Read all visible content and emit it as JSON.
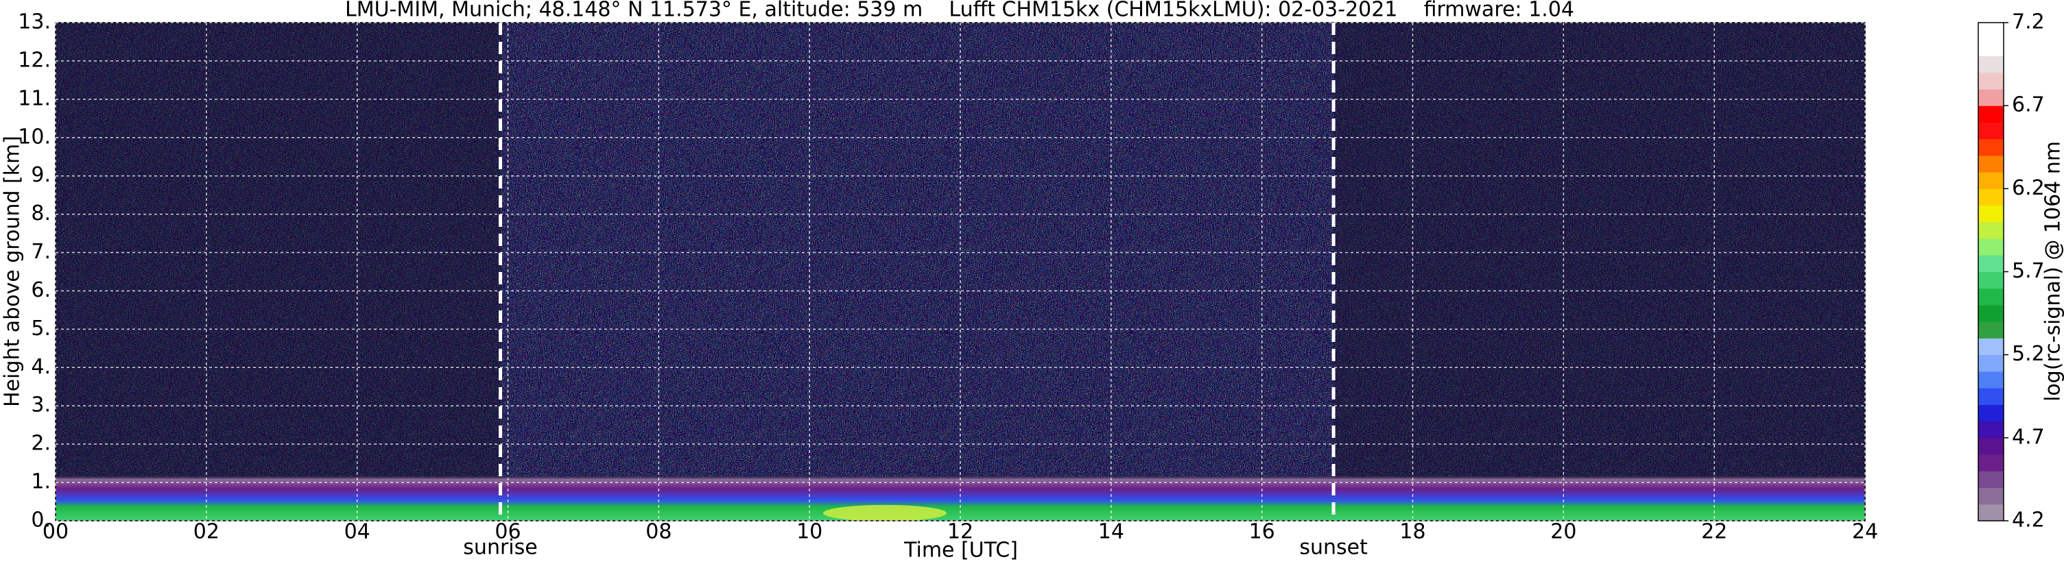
{
  "chart_data": {
    "type": "heatmap",
    "title": "LMU-MIM, Munich; 48.148° N 11.573° E, altitude: 539 m    Lufft CHM15kx (CHM15kxLMU): 02-03-2021    firmware: 1.04",
    "xlabel": "Time [UTC]",
    "ylabel": "Height above ground [km]",
    "colorbar_label": "log(rc-signal) @ 1064 nm",
    "xlim": [
      0,
      24
    ],
    "xticks": [
      {
        "value": 0,
        "label": "00"
      },
      {
        "value": 2,
        "label": "02"
      },
      {
        "value": 4,
        "label": "04"
      },
      {
        "value": 6,
        "label": "06"
      },
      {
        "value": 8,
        "label": "08"
      },
      {
        "value": 10,
        "label": "10"
      },
      {
        "value": 12,
        "label": "12"
      },
      {
        "value": 14,
        "label": "14"
      },
      {
        "value": 16,
        "label": "16"
      },
      {
        "value": 18,
        "label": "18"
      },
      {
        "value": 20,
        "label": "20"
      },
      {
        "value": 22,
        "label": "22"
      },
      {
        "value": 24,
        "label": "24"
      }
    ],
    "ylim": [
      0,
      13
    ],
    "yticks": [
      {
        "value": 0,
        "label": "0."
      },
      {
        "value": 1,
        "label": "1."
      },
      {
        "value": 2,
        "label": "2."
      },
      {
        "value": 3,
        "label": "3."
      },
      {
        "value": 4,
        "label": "4."
      },
      {
        "value": 5,
        "label": "5."
      },
      {
        "value": 6,
        "label": "6."
      },
      {
        "value": 7,
        "label": "7."
      },
      {
        "value": 8,
        "label": "8."
      },
      {
        "value": 9,
        "label": "9."
      },
      {
        "value": 10,
        "label": "10."
      },
      {
        "value": 11,
        "label": "11."
      },
      {
        "value": 12,
        "label": "12."
      },
      {
        "value": 13,
        "label": "13."
      }
    ],
    "clim": [
      4.2,
      7.2
    ],
    "cticks": [
      4.2,
      4.7,
      5.2,
      5.7,
      6.2,
      6.7,
      7.2
    ],
    "colormap": [
      "#a090a8",
      "#8c6c98",
      "#7a4a90",
      "#6a2088",
      "#5a1290",
      "#4010b0",
      "#2020d8",
      "#3050f0",
      "#5080f8",
      "#80a8fa",
      "#a0c0fb",
      "#30a040",
      "#10a030",
      "#20b848",
      "#40d070",
      "#60e090",
      "#90f070",
      "#c0f040",
      "#f0f000",
      "#ffd000",
      "#ffb000",
      "#ff8000",
      "#ff4000",
      "#ff1010",
      "#ff0000",
      "#f0a0a0",
      "#f0c8c8",
      "#e8e0e0",
      "#ffffff",
      "#ffffff"
    ],
    "grid": true,
    "annotations": [
      {
        "label": "sunrise",
        "x": 5.9
      },
      {
        "label": "sunset",
        "x": 16.95
      }
    ]
  }
}
